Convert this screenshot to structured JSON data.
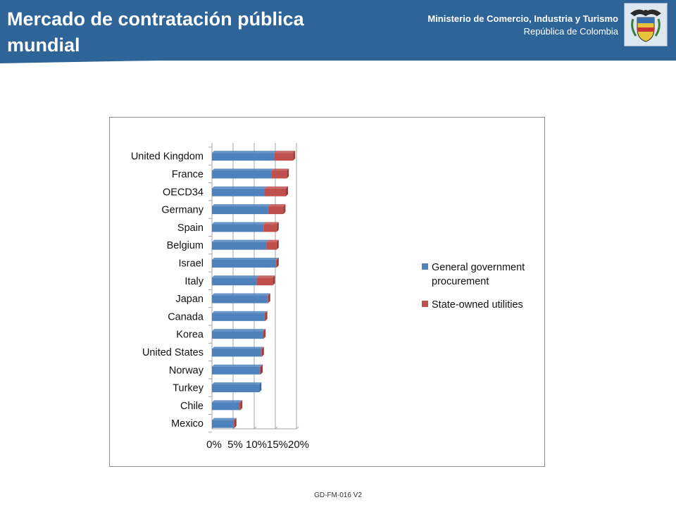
{
  "header": {
    "title": "Mercado de contratación pública mundial",
    "ministry_line1": "Ministerio de Comercio, Industria y Turismo",
    "ministry_line2": "República de Colombia"
  },
  "colors": {
    "header_bg": "#2e6497",
    "series_general": "#4f81bd",
    "series_soe": "#c0504d"
  },
  "icons": {
    "crest": "colombia-coat-of-arms-icon"
  },
  "chart_data": {
    "type": "bar",
    "orientation": "horizontal",
    "stacked": true,
    "categories": [
      "United Kingdom",
      "France",
      "OECD34",
      "Germany",
      "Spain",
      "Belgium",
      "Israel",
      "Italy",
      "Japan",
      "Canada",
      "Korea",
      "United States",
      "Norway",
      "Turkey",
      "Chile",
      "Mexico"
    ],
    "series": [
      {
        "name": "General government procurement",
        "color": "#4f81bd",
        "values": [
          14.7,
          14.1,
          12.5,
          13.3,
          12.2,
          12.9,
          15.1,
          10.6,
          13.2,
          12.4,
          12.0,
          11.6,
          11.3,
          11.2,
          6.5,
          5.1
        ]
      },
      {
        "name": "State-owned utilities",
        "color": "#c0504d",
        "values": [
          4.5,
          3.6,
          5.0,
          3.6,
          3.1,
          2.4,
          0.2,
          3.8,
          0.1,
          0.2,
          0.2,
          0.2,
          0.2,
          0.0,
          0.2,
          0.2
        ]
      }
    ],
    "xlim": [
      0,
      20
    ],
    "xticks": [
      "0%",
      "5%",
      "10%",
      "15%",
      "20%"
    ],
    "xgrid": true,
    "legend": "right"
  },
  "footer": {
    "code": "GD-FM-016 V2"
  }
}
